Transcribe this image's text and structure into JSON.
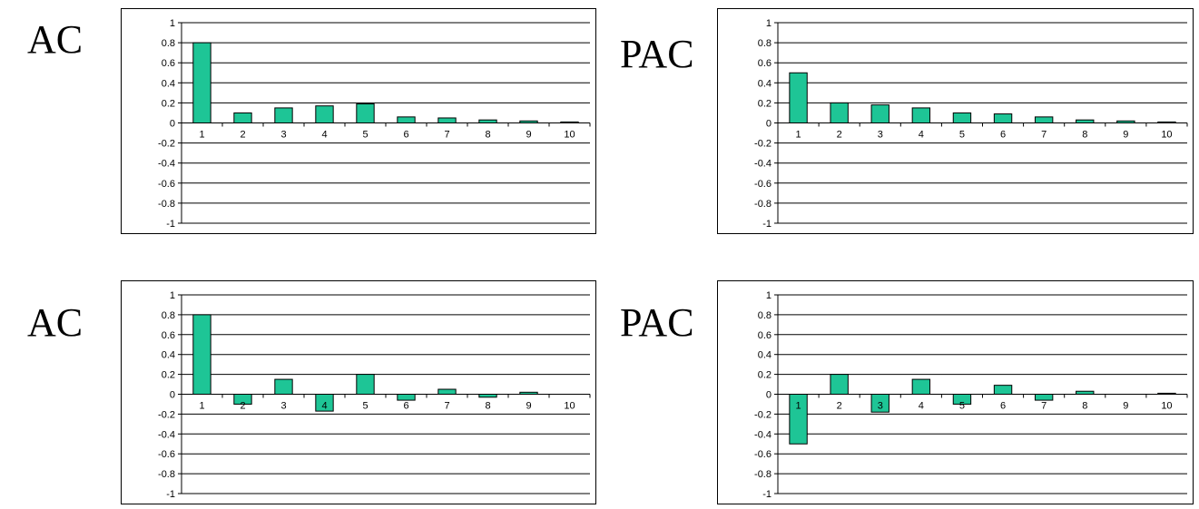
{
  "labels": [
    "AC",
    "PAC",
    "AC",
    "PAC"
  ],
  "colors": {
    "bar": "#1ec596",
    "axis": "#000000",
    "grid": "#000000"
  },
  "chart_data": [
    {
      "type": "bar",
      "categories": [
        "1",
        "2",
        "3",
        "4",
        "5",
        "6",
        "7",
        "8",
        "9",
        "10"
      ],
      "values": [
        0.8,
        0.1,
        0.15,
        0.17,
        0.19,
        0.06,
        0.05,
        0.03,
        0.02,
        0.01
      ],
      "title": "",
      "xlabel": "",
      "ylabel": "",
      "ylim": [
        -1,
        1
      ],
      "yticks": [
        "1",
        "0.8",
        "0.6",
        "0.4",
        "0.2",
        "0",
        "-0.2",
        "-0.4",
        "-0.6",
        "-0.8",
        "-1"
      ],
      "grid": true
    },
    {
      "type": "bar",
      "categories": [
        "1",
        "2",
        "3",
        "4",
        "5",
        "6",
        "7",
        "8",
        "9",
        "10"
      ],
      "values": [
        0.5,
        0.2,
        0.18,
        0.15,
        0.1,
        0.09,
        0.06,
        0.03,
        0.02,
        0.01
      ],
      "title": "",
      "xlabel": "",
      "ylabel": "",
      "ylim": [
        -1,
        1
      ],
      "yticks": [
        "1",
        "0.8",
        "0.6",
        "0.4",
        "0.2",
        "0",
        "-0.2",
        "-0.4",
        "-0.6",
        "-0.8",
        "-1"
      ],
      "grid": true
    },
    {
      "type": "bar",
      "categories": [
        "1",
        "2",
        "3",
        "4",
        "5",
        "6",
        "7",
        "8",
        "9",
        "10"
      ],
      "values": [
        0.8,
        -0.1,
        0.15,
        -0.17,
        0.2,
        -0.06,
        0.05,
        -0.03,
        0.02,
        0
      ],
      "title": "",
      "xlabel": "",
      "ylabel": "",
      "ylim": [
        -1,
        1
      ],
      "yticks": [
        "1",
        "0.8",
        "0.6",
        "0.4",
        "0.2",
        "0",
        "-0.2",
        "-0.4",
        "-0.6",
        "-0.8",
        "-1"
      ],
      "grid": true
    },
    {
      "type": "bar",
      "categories": [
        "1",
        "2",
        "3",
        "4",
        "5",
        "6",
        "7",
        "8",
        "9",
        "10"
      ],
      "values": [
        -0.5,
        0.2,
        -0.18,
        0.15,
        -0.1,
        0.09,
        -0.06,
        0.03,
        0,
        0.01
      ],
      "title": "",
      "xlabel": "",
      "ylabel": "",
      "ylim": [
        -1,
        1
      ],
      "yticks": [
        "1",
        "0.8",
        "0.6",
        "0.4",
        "0.2",
        "0",
        "-0.2",
        "-0.4",
        "-0.6",
        "-0.8",
        "-1"
      ],
      "grid": true
    }
  ]
}
